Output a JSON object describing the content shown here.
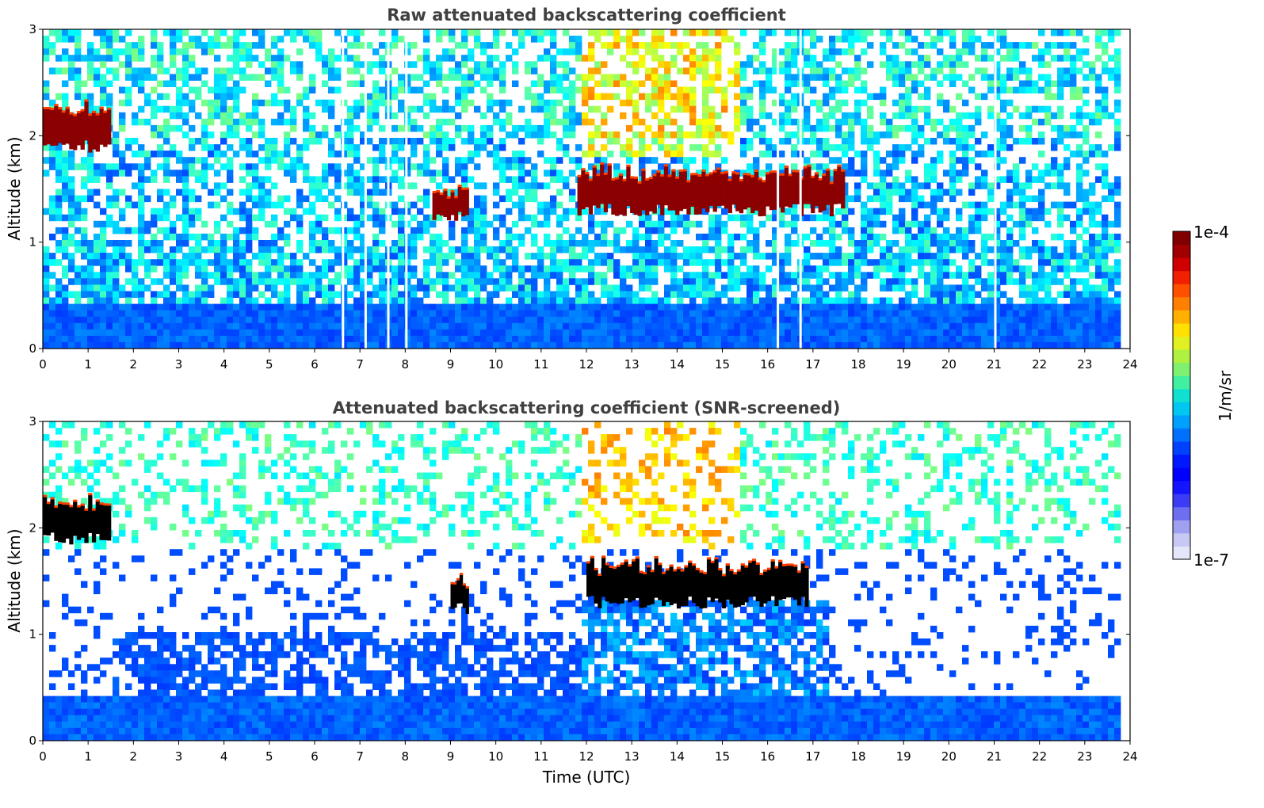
{
  "chart_data": [
    {
      "type": "heatmap",
      "title": "Raw attenuated backscattering coefficient",
      "xlabel": "",
      "ylabel": "Altitude (km)",
      "xlim": [
        0,
        24
      ],
      "ylim": [
        0,
        3
      ],
      "xticks": [
        "0",
        "1",
        "2",
        "3",
        "4",
        "5",
        "6",
        "7",
        "8",
        "9",
        "10",
        "11",
        "12",
        "13",
        "14",
        "15",
        "16",
        "17",
        "18",
        "19",
        "20",
        "21",
        "22",
        "23",
        "24"
      ],
      "yticks": [
        "0",
        "1",
        "2",
        "3"
      ],
      "colormap": "jet",
      "features": [
        {
          "label": "cloud layer",
          "time_start": 0.0,
          "time_end": 1.5,
          "altitude_km": [
            1.9,
            2.2
          ],
          "level": "1e-4"
        },
        {
          "label": "cloud layer",
          "time_start": 8.6,
          "time_end": 9.4,
          "altitude_km": [
            1.25,
            1.45
          ],
          "level": "1e-4"
        },
        {
          "label": "cloud layer",
          "time_start": 11.8,
          "time_end": 17.7,
          "altitude_km": [
            1.3,
            1.6
          ],
          "level": "1e-4"
        },
        {
          "label": "boundary layer",
          "time_start": 0.0,
          "time_end": 23.8,
          "altitude_km": [
            0.0,
            0.5
          ],
          "level": "~1e-6"
        }
      ],
      "data_gaps_utc": [
        6.6,
        7.1,
        7.6,
        8.0,
        16.2,
        16.7,
        21.0
      ]
    },
    {
      "type": "heatmap",
      "title": "Attenuated backscattering coefficient (SNR-screened)",
      "xlabel": "Time (UTC)",
      "ylabel": "Altitude (km)",
      "xlim": [
        0,
        24
      ],
      "ylim": [
        0,
        3
      ],
      "xticks": [
        "0",
        "1",
        "2",
        "3",
        "4",
        "5",
        "6",
        "7",
        "8",
        "9",
        "10",
        "11",
        "12",
        "13",
        "14",
        "15",
        "16",
        "17",
        "18",
        "19",
        "20",
        "21",
        "22",
        "23",
        "24"
      ],
      "yticks": [
        "0",
        "1",
        "2",
        "3"
      ],
      "colormap": "jet",
      "features": [
        {
          "label": "cloud layer",
          "time_start": 0.0,
          "time_end": 1.5,
          "altitude_km": [
            1.9,
            2.2
          ],
          "level": "saturated"
        },
        {
          "label": "cloud layer",
          "time_start": 9.0,
          "time_end": 9.4,
          "altitude_km": [
            1.25,
            1.45
          ],
          "level": "saturated"
        },
        {
          "label": "cloud layer",
          "time_start": 12.0,
          "time_end": 16.9,
          "altitude_km": [
            1.3,
            1.6
          ],
          "level": "saturated"
        },
        {
          "label": "boundary layer",
          "time_start": 0.0,
          "time_end": 23.8,
          "altitude_km": [
            0.0,
            1.0
          ],
          "level": "~1e-6"
        }
      ]
    }
  ],
  "colorbar": {
    "label": "1/m/sr",
    "max_label": "1e-4",
    "min_label": "1e-7",
    "colors": [
      "#e6e6fa",
      "#c8c8f5",
      "#a0a0f0",
      "#6e6ef0",
      "#3c3cf5",
      "#1414ff",
      "#0000ff",
      "#0018ff",
      "#0040ff",
      "#0070ff",
      "#00a0ff",
      "#00c8f0",
      "#10e0d0",
      "#40f0a0",
      "#80f070",
      "#b0f040",
      "#e0f020",
      "#ffe000",
      "#ffb000",
      "#ff8000",
      "#ff5000",
      "#f02000",
      "#d00000",
      "#a00000",
      "#800000"
    ]
  }
}
